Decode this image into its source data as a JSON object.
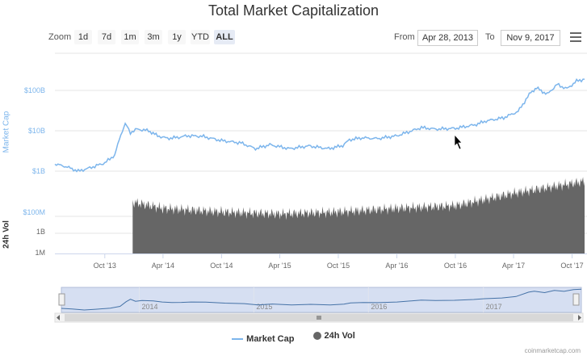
{
  "header": {
    "title": "Total Market Capitalization"
  },
  "toolbar": {
    "zoom_label": "Zoom",
    "zoom_buttons": [
      "1d",
      "7d",
      "1m",
      "3m",
      "1y",
      "YTD",
      "ALL"
    ],
    "active_zoom": "ALL",
    "from_label": "From",
    "from_value": "Apr 28, 2013",
    "to_label": "To",
    "to_value": "Nov 9, 2017"
  },
  "legend": {
    "items": [
      "Market Cap",
      "24h Vol"
    ]
  },
  "credit": "coinmarketcap.com",
  "colors": {
    "market_cap": "#7cb5ec",
    "volume": "#666666",
    "navigator_fill": "#d6dff2"
  },
  "chart_data": {
    "type": "line",
    "x_axis_ticks": [
      "Oct '13",
      "Apr '14",
      "Oct '14",
      "Apr '15",
      "Oct '15",
      "Apr '16",
      "Oct '16",
      "Apr '17",
      "Oct '17"
    ],
    "xlim": [
      "2013-04-28",
      "2017-11-09"
    ],
    "market_cap": {
      "ylabel": "Market Cap",
      "y_scale": "log",
      "ylim": [
        1000000000,
        200000000000
      ],
      "y_ticks": [
        "$1B",
        "$10B",
        "$100B"
      ],
      "points": [
        [
          "2013-04-28",
          1500000000.0
        ],
        [
          "2013-06-01",
          1300000000.0
        ],
        [
          "2013-07-10",
          1000000000.0
        ],
        [
          "2013-08-15",
          1200000000.0
        ],
        [
          "2013-10-01",
          1600000000.0
        ],
        [
          "2013-11-01",
          2500000000.0
        ],
        [
          "2013-11-20",
          8000000000.0
        ],
        [
          "2013-12-04",
          15000000000.0
        ],
        [
          "2013-12-20",
          9000000000.0
        ],
        [
          "2014-01-10",
          11000000000.0
        ],
        [
          "2014-02-15",
          10000000000.0
        ],
        [
          "2014-03-15",
          7500000000.0
        ],
        [
          "2014-04-15",
          6500000000.0
        ],
        [
          "2014-05-15",
          6800000000.0
        ],
        [
          "2014-06-15",
          7500000000.0
        ],
        [
          "2014-08-01",
          7300000000.0
        ],
        [
          "2014-10-01",
          5700000000.0
        ],
        [
          "2014-12-01",
          5000000000.0
        ],
        [
          "2015-01-15",
          3600000000.0
        ],
        [
          "2015-03-01",
          4500000000.0
        ],
        [
          "2015-05-01",
          3600000000.0
        ],
        [
          "2015-07-01",
          4200000000.0
        ],
        [
          "2015-09-01",
          3600000000.0
        ],
        [
          "2015-10-15",
          4300000000.0
        ],
        [
          "2015-11-05",
          6000000000.0
        ],
        [
          "2015-12-15",
          6700000000.0
        ],
        [
          "2016-02-01",
          6400000000.0
        ],
        [
          "2016-04-01",
          7500000000.0
        ],
        [
          "2016-06-17",
          12000000000.0
        ],
        [
          "2016-08-01",
          11000000000.0
        ],
        [
          "2016-10-01",
          11500000000.0
        ],
        [
          "2016-12-01",
          14000000000.0
        ],
        [
          "2017-01-05",
          17500000000.0
        ],
        [
          "2017-03-01",
          21000000000.0
        ],
        [
          "2017-04-15",
          30000000000.0
        ],
        [
          "2017-05-25",
          90000000000.0
        ],
        [
          "2017-06-12",
          115000000000.0
        ],
        [
          "2017-07-15",
          80000000000.0
        ],
        [
          "2017-08-15",
          140000000000.0
        ],
        [
          "2017-09-15",
          110000000000.0
        ],
        [
          "2017-10-15",
          170000000000.0
        ],
        [
          "2017-11-09",
          190000000000.0
        ]
      ]
    },
    "volume": {
      "ylabel": "24h Vol",
      "y_scale": "log",
      "ylim": [
        1000000,
        100000000000
      ],
      "y_ticks": [
        "1M",
        "1B",
        "$100M"
      ],
      "start_date": "2013-12-27",
      "points": [
        [
          "2013-12-27",
          300000000.0
        ],
        [
          "2014-04-01",
          150000000.0
        ],
        [
          "2014-10-01",
          100000000.0
        ],
        [
          "2015-04-01",
          80000000.0
        ],
        [
          "2015-10-01",
          100000000.0
        ],
        [
          "2016-04-01",
          150000000.0
        ],
        [
          "2016-10-01",
          200000000.0
        ],
        [
          "2017-04-01",
          800000000.0
        ],
        [
          "2017-11-09",
          3000000000.0
        ]
      ]
    },
    "navigator": {
      "year_labels": [
        "2014",
        "2015",
        "2016",
        "2017"
      ]
    }
  }
}
